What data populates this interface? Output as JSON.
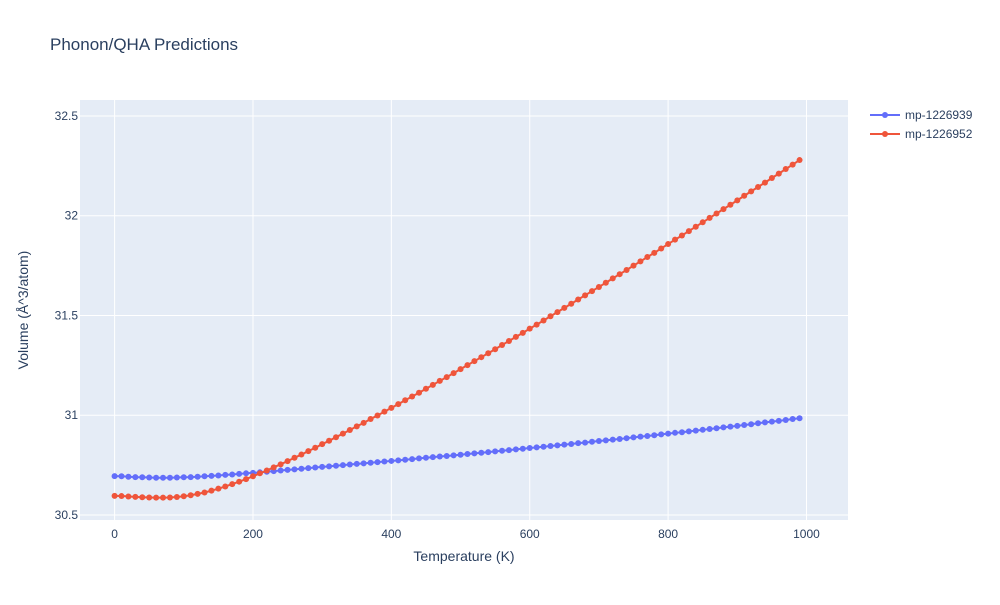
{
  "chart_data": {
    "type": "line",
    "title": "Phonon/QHA Predictions",
    "xlabel": "Temperature (K)",
    "ylabel": "Volume (Å^3/atom)",
    "xlim": [
      -50,
      1060
    ],
    "ylim": [
      30.475,
      32.58
    ],
    "xticks": [
      0,
      200,
      400,
      600,
      800,
      1000
    ],
    "xtick_labels": [
      "0",
      "200",
      "400",
      "600",
      "800",
      "1000"
    ],
    "yticks": [
      30.5,
      31,
      31.5,
      32,
      32.5
    ],
    "ytick_labels": [
      "30.5",
      "31",
      "31.5",
      "32",
      "32.5"
    ],
    "grid": true,
    "legend_position": "top-right",
    "plot_bgcolor": "#E5ECF6",
    "grid_color": "#FFFFFF",
    "text_color": "#2A3F5F",
    "x": [
      0,
      10,
      20,
      30,
      40,
      50,
      60,
      70,
      80,
      90,
      100,
      110,
      120,
      130,
      140,
      150,
      160,
      170,
      180,
      190,
      200,
      210,
      220,
      230,
      240,
      250,
      260,
      270,
      280,
      290,
      300,
      310,
      320,
      330,
      340,
      350,
      360,
      370,
      380,
      390,
      400,
      410,
      420,
      430,
      440,
      450,
      460,
      470,
      480,
      490,
      500,
      510,
      520,
      530,
      540,
      550,
      560,
      570,
      580,
      590,
      600,
      610,
      620,
      630,
      640,
      650,
      660,
      670,
      680,
      690,
      700,
      710,
      720,
      730,
      740,
      750,
      760,
      770,
      780,
      790,
      800,
      810,
      820,
      830,
      840,
      850,
      860,
      870,
      880,
      890,
      900,
      910,
      920,
      930,
      940,
      950,
      960,
      970,
      980,
      990
    ],
    "series": [
      {
        "name": "mp-1226939",
        "color": "#636EFA",
        "values": [
          30.695,
          30.694,
          30.692,
          30.69,
          30.689,
          30.688,
          30.687,
          30.687,
          30.687,
          30.688,
          30.689,
          30.69,
          30.692,
          30.694,
          30.696,
          30.698,
          30.701,
          30.703,
          30.706,
          30.709,
          30.711,
          30.714,
          30.717,
          30.72,
          30.723,
          30.726,
          30.729,
          30.732,
          30.735,
          30.738,
          30.741,
          30.744,
          30.747,
          30.75,
          30.753,
          30.756,
          30.759,
          30.762,
          30.765,
          30.768,
          30.771,
          30.774,
          30.777,
          30.78,
          30.784,
          30.787,
          30.79,
          30.793,
          30.796,
          30.799,
          30.802,
          30.806,
          30.809,
          30.812,
          30.815,
          30.819,
          30.822,
          30.825,
          30.829,
          30.832,
          30.836,
          30.839,
          30.842,
          30.846,
          30.849,
          30.853,
          30.856,
          30.86,
          30.863,
          30.867,
          30.871,
          30.874,
          30.878,
          30.881,
          30.885,
          30.889,
          30.893,
          30.896,
          30.9,
          30.904,
          30.908,
          30.912,
          30.915,
          30.919,
          30.923,
          30.927,
          30.931,
          30.935,
          30.939,
          30.943,
          30.947,
          30.951,
          30.955,
          30.96,
          30.964,
          30.968,
          30.972,
          30.976,
          30.981,
          30.985
        ]
      },
      {
        "name": "mp-1226952",
        "color": "#EF553B",
        "values": [
          30.596,
          30.595,
          30.593,
          30.591,
          30.589,
          30.588,
          30.587,
          30.587,
          30.588,
          30.59,
          30.594,
          30.599,
          30.606,
          30.613,
          30.622,
          30.632,
          30.643,
          30.655,
          30.667,
          30.68,
          30.694,
          30.709,
          30.723,
          30.739,
          30.754,
          30.77,
          30.787,
          30.803,
          30.82,
          30.837,
          30.855,
          30.872,
          30.89,
          30.908,
          30.926,
          30.944,
          30.962,
          30.981,
          30.999,
          31.018,
          31.037,
          31.056,
          31.075,
          31.094,
          31.113,
          31.133,
          31.152,
          31.172,
          31.191,
          31.211,
          31.231,
          31.251,
          31.271,
          31.291,
          31.311,
          31.331,
          31.352,
          31.372,
          31.393,
          31.413,
          31.434,
          31.454,
          31.475,
          31.496,
          31.517,
          31.538,
          31.559,
          31.58,
          31.601,
          31.622,
          31.643,
          31.664,
          31.686,
          31.707,
          31.728,
          31.75,
          31.771,
          31.793,
          31.814,
          31.836,
          31.858,
          31.88,
          31.901,
          31.923,
          31.945,
          31.967,
          31.989,
          32.011,
          32.033,
          32.055,
          32.077,
          32.1,
          32.122,
          32.144,
          32.166,
          32.189,
          32.211,
          32.234,
          32.256,
          32.279
        ]
      }
    ]
  }
}
